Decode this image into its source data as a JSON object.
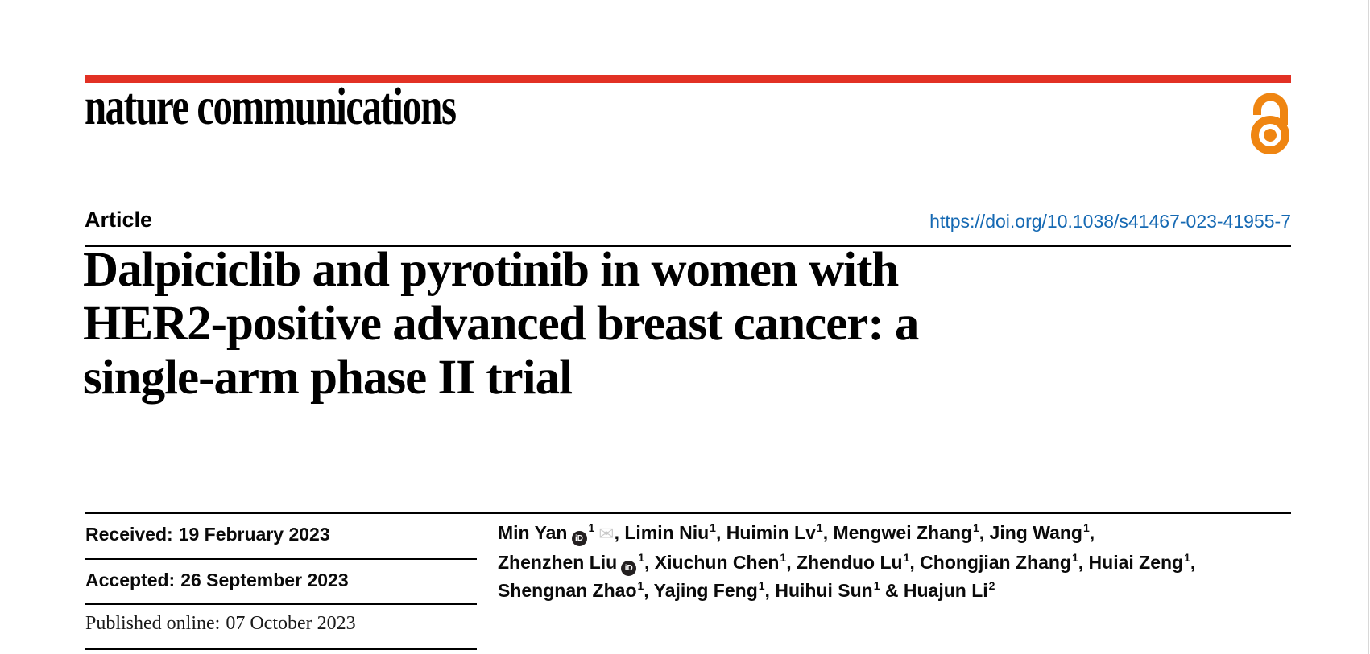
{
  "theme": {
    "brand_red": "#e23124",
    "oa_orange": "#ef8511",
    "link_blue": "#1569b3",
    "rule_black": "#000000",
    "envelope_gray": "#c9c9c9",
    "orcid_black": "#231f20",
    "page_edge": "#d8d8d8"
  },
  "journal": {
    "logo_text": "nature communications"
  },
  "meta": {
    "article_label": "Article",
    "doi_link": "https://doi.org/10.1038/s41467-023-41955-7"
  },
  "title": {
    "lines": [
      "Dalpiciclib and pyrotinib in women with",
      "HER2-positive advanced breast cancer: a",
      "single-arm phase II trial"
    ]
  },
  "history": {
    "rows": [
      {
        "label": "Received:",
        "value": "19 February 2023"
      },
      {
        "label": "Accepted:",
        "value": "26 September 2023"
      },
      {
        "label": "Published online:",
        "value": "07 October 2023"
      }
    ]
  },
  "icons": {
    "orcid_label": "iD",
    "email_glyph": "✉"
  },
  "authors": {
    "lines": [
      [
        {
          "name": "Min Yan",
          "orcid": true,
          "sup": "1",
          "email": true,
          "sep": ", "
        },
        {
          "name": "Limin Niu",
          "sup": "1",
          "sep": ", "
        },
        {
          "name": "Huimin Lv",
          "sup": "1",
          "sep": ", "
        },
        {
          "name": "Mengwei Zhang",
          "sup": "1",
          "sep": ", "
        },
        {
          "name": "Jing Wang",
          "sup": "1",
          "sep": ","
        }
      ],
      [
        {
          "name": "Zhenzhen Liu",
          "orcid": true,
          "sup": "1",
          "sep": ", "
        },
        {
          "name": "Xiuchun Chen",
          "sup": "1",
          "sep": ", "
        },
        {
          "name": "Zhenduo Lu",
          "sup": "1",
          "sep": ", "
        },
        {
          "name": "Chongjian Zhang",
          "sup": "1",
          "sep": ", "
        },
        {
          "name": "Huiai Zeng",
          "sup": "1",
          "sep": ","
        }
      ],
      [
        {
          "name": "Shengnan Zhao",
          "sup": "1",
          "sep": ", "
        },
        {
          "name": "Yajing Feng",
          "sup": "1",
          "sep": ", "
        },
        {
          "name": "Huihui Sun",
          "sup": "1",
          "sep": " & "
        },
        {
          "name": "Huajun Li",
          "sup": "2",
          "sep": ""
        }
      ]
    ]
  }
}
